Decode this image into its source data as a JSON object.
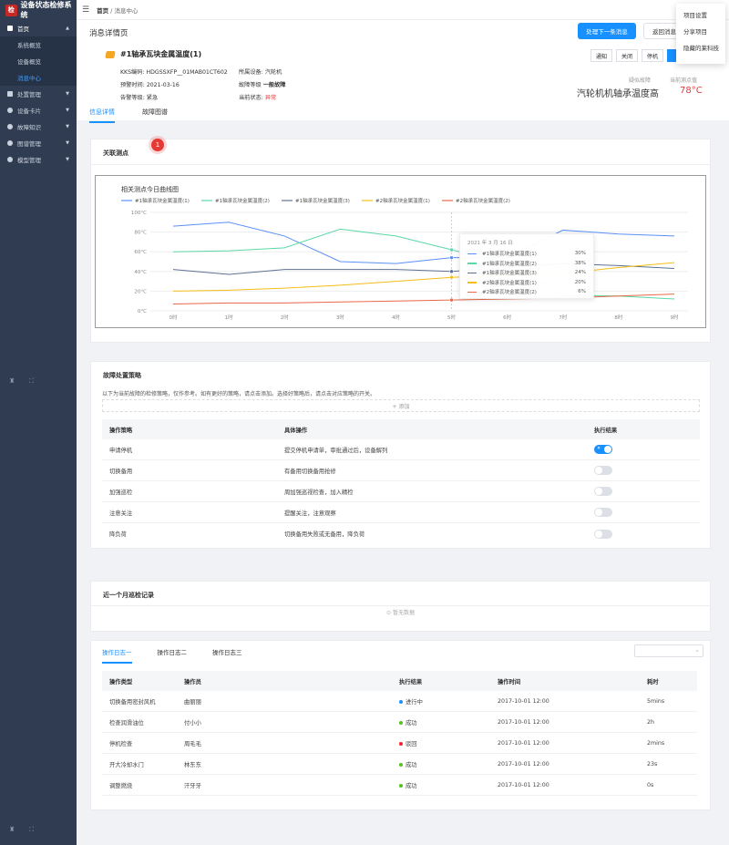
{
  "app": {
    "title": "设备状态检修系统",
    "logo_char": "检"
  },
  "sidebar": {
    "items": [
      {
        "label": "首页"
      },
      {
        "label": "系统概览"
      },
      {
        "label": "设备概览"
      },
      {
        "label": "消息中心"
      },
      {
        "label": "处置管理"
      },
      {
        "label": "设备卡片"
      },
      {
        "label": "故障知识"
      },
      {
        "label": "图谱管理"
      },
      {
        "label": "模型管理"
      }
    ]
  },
  "breadcrumb": {
    "home": "首页",
    "sep": "/",
    "current": "消息中心"
  },
  "dropdown": {
    "items": [
      "项目设置",
      "分享项目",
      "隐藏的莱科技"
    ]
  },
  "header": {
    "page_title": "消息详情页",
    "btn_next": "处理下一条消息",
    "btn_back": "返回消息",
    "alarm_title": "#1轴承瓦块金属温度(1)",
    "kks_label": "KKS编码:",
    "kks_value": "HDGSSXFP__01MAB01CT602",
    "device_label": "所属设备:",
    "device_value": "汽轮机",
    "time_label": "预警时间:",
    "time_value": "2021-03-16",
    "fault_level_label": "故障等级",
    "fault_level_value": "一般故障",
    "alarm_level_label": "告警等级:",
    "alarm_level_value": "紧急",
    "state_label": "当前状态:",
    "state_value": "异常",
    "seg_buttons": [
      "通知",
      "关闭",
      "停机"
    ],
    "suspect_label": "疑似故障",
    "suspect_value": "汽轮机机轴承温度高",
    "current_label": "当前测点值",
    "current_value": "78°C",
    "tabs": [
      "信息详情",
      "故障图谱"
    ]
  },
  "related": {
    "title": "关联测点",
    "badge": "1"
  },
  "colors": {
    "s1": "#5b8ff9",
    "s2": "#5ad8a6",
    "s3": "#5d7092",
    "s4": "#f6bd16",
    "s5": "#e8684a",
    "accent": "#1890ff"
  },
  "chart_data": {
    "type": "line",
    "title": "相关测点今日曲线图",
    "x": [
      "0时",
      "1时",
      "2时",
      "3时",
      "4时",
      "5时",
      "6时",
      "7时",
      "8时",
      "9时"
    ],
    "ylim": [
      0,
      100
    ],
    "yticks": [
      "0°C",
      "20°C",
      "40°C",
      "60°C",
      "80°C",
      "100°C"
    ],
    "series": [
      {
        "name": "#1轴承瓦块金属温度(1)",
        "color": "#5b8ff9",
        "values": [
          86,
          90,
          76,
          50,
          48,
          54,
          54,
          82,
          78,
          76
        ]
      },
      {
        "name": "#1轴承瓦块金属温度(2)",
        "color": "#5ad8a6",
        "values": [
          60,
          61,
          64,
          83,
          76,
          62,
          48,
          16,
          15,
          12
        ]
      },
      {
        "name": "#1轴承瓦块金属温度(3)",
        "color": "#5d7092",
        "values": [
          42,
          37,
          42,
          42,
          42,
          40,
          44,
          48,
          46,
          43
        ]
      },
      {
        "name": "#2轴承瓦块金属温度(1)",
        "color": "#f6bd16",
        "values": [
          20,
          21,
          23,
          26,
          30,
          34,
          36,
          38,
          44,
          49
        ]
      },
      {
        "name": "#2轴承瓦块金属温度(2)",
        "color": "#e8684a",
        "values": [
          7,
          8,
          8,
          9,
          10,
          11,
          12,
          13,
          15,
          17
        ]
      }
    ],
    "tooltip": {
      "title": "2021 年 3 月 16 日",
      "values": [
        "30%",
        "38%",
        "24%",
        "20%",
        "6%"
      ]
    },
    "grid": true,
    "legend": "top-left"
  },
  "strategy": {
    "title": "故障处置策略",
    "desc": "以下为当前故障的检修策略，仅作参考。如有更好的策略，请点击添加。选择好策略后，请点击对应策略的开关。",
    "add": "+ 添加",
    "headers": [
      "操作策略",
      "具体操作",
      "执行结果"
    ],
    "rows": [
      {
        "name": "申请停机",
        "op": "提交停机申请单，审批通过后，设备解列",
        "on": true
      },
      {
        "name": "切换备用",
        "op": "有备用切换备用抢修",
        "on": false
      },
      {
        "name": "加强巡检",
        "op": "周加强巡视检查，加入精检",
        "on": false
      },
      {
        "name": "注意关注",
        "op": "提醒关注，注意观察",
        "on": false
      },
      {
        "name": "降负荷",
        "op": "切换备用失败或无备用，降负荷",
        "on": false
      }
    ]
  },
  "patrol": {
    "title": "近一个月巡检记录",
    "empty": "暂无数据"
  },
  "logs": {
    "tabs": [
      "操作日志一",
      "操作日志二",
      "操作日志三"
    ],
    "headers": [
      "操作类型",
      "操作员",
      "执行结果",
      "操作时间",
      "耗时"
    ],
    "rows": [
      {
        "type": "切换备用密封风机",
        "op": "曲丽丽",
        "status": "进行中",
        "color": "#1890ff",
        "time": "2017-10-01 12:00",
        "cost": "5mins"
      },
      {
        "type": "检查润滑油位",
        "op": "付小小",
        "status": "成功",
        "color": "#52c41a",
        "time": "2017-10-01 12:00",
        "cost": "2h"
      },
      {
        "type": "停机检查",
        "op": "周毛毛",
        "status": "驳回",
        "color": "#f5222d",
        "time": "2017-10-01 12:00",
        "cost": "2mins"
      },
      {
        "type": "开大冷却水门",
        "op": "林东东",
        "status": "成功",
        "color": "#52c41a",
        "time": "2017-10-01 12:00",
        "cost": "23s"
      },
      {
        "type": "调整燃烧",
        "op": "汗牙牙",
        "status": "成功",
        "color": "#52c41a",
        "time": "2017-10-01 12:00",
        "cost": "0s"
      }
    ]
  }
}
